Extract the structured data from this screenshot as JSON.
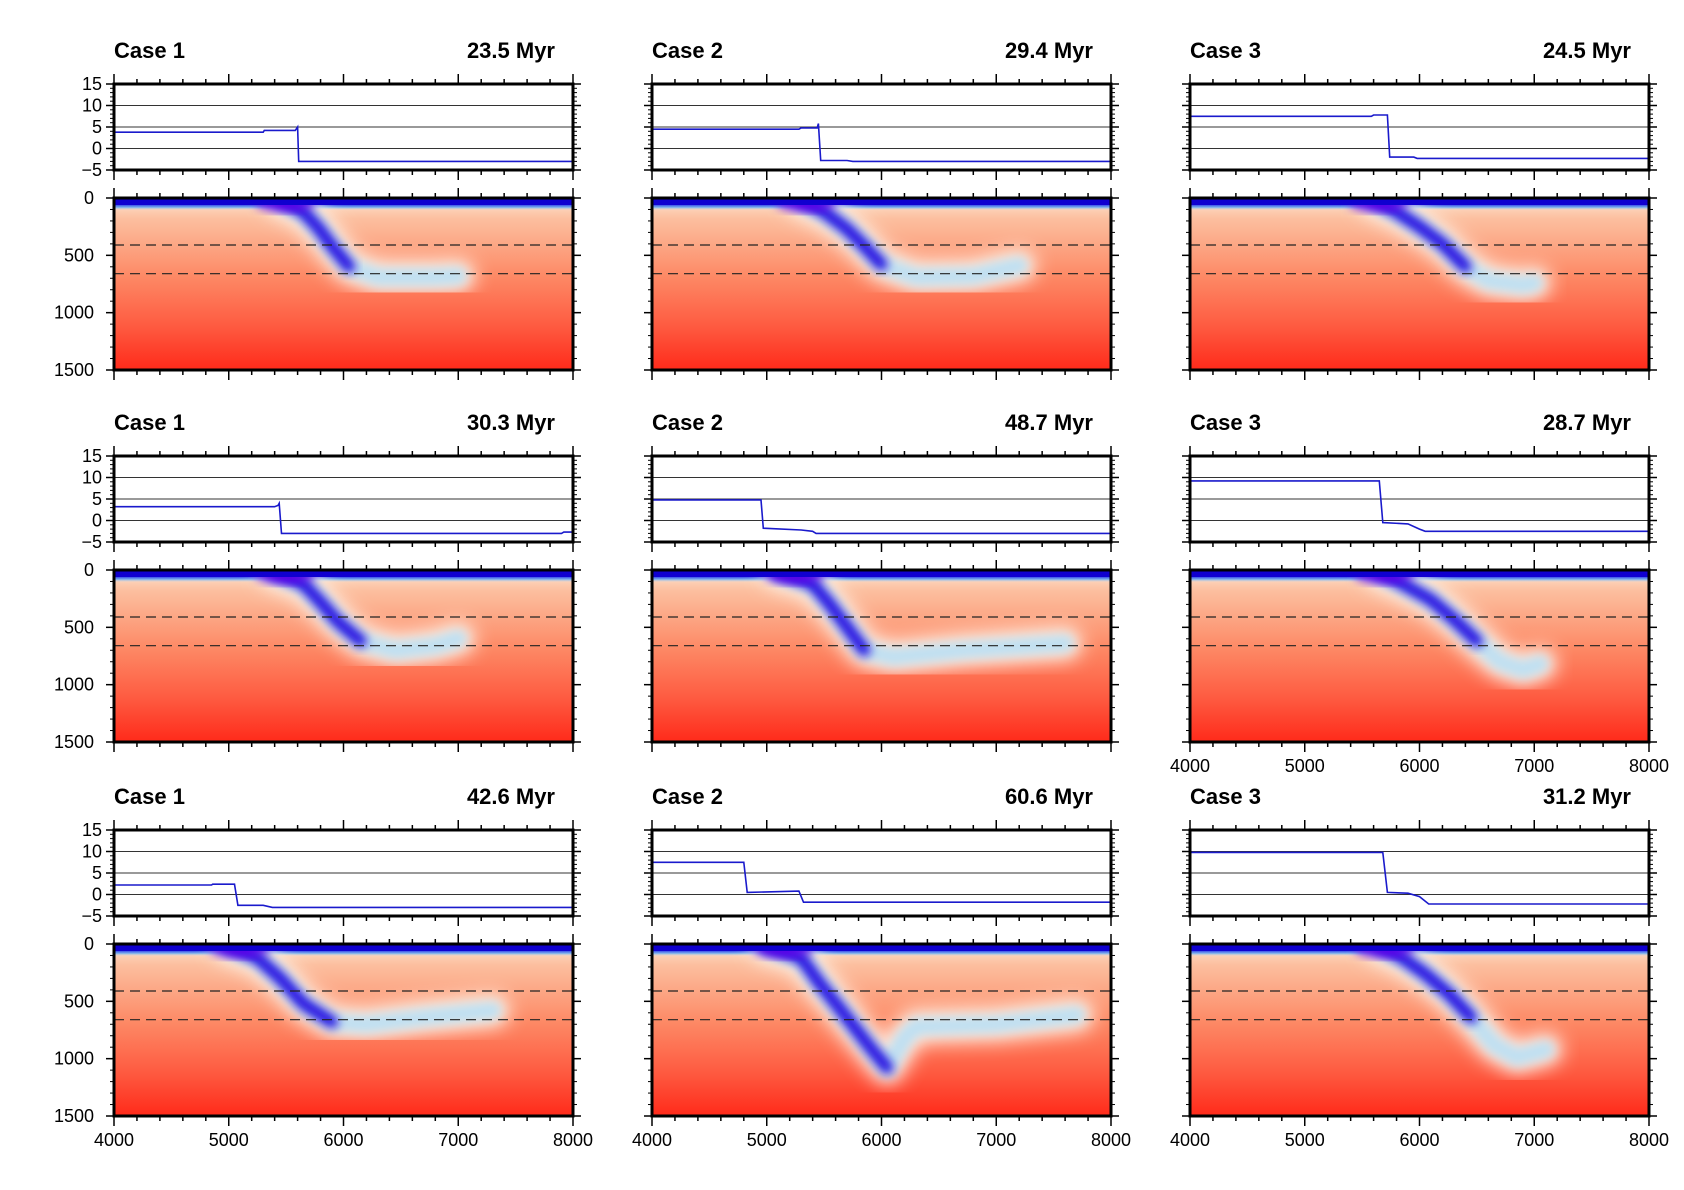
{
  "chart_data": {
    "type": "line",
    "description": "3x3 grid of subduction model snapshots; each panel has a top line plot and a bottom slab field image",
    "colors": {
      "line": "#1a1acc",
      "slab_core": "#1400e0",
      "slab_tip": "#bfe0f2",
      "mantle_top": "#fcbf9f",
      "mantle_bottom": "#ff2a1a",
      "frame": "#000000",
      "gridline": "#333333"
    },
    "top_plot": {
      "ylim": [
        -5,
        15
      ],
      "yticks": [
        15,
        10,
        5,
        0,
        -5
      ],
      "ytick_labels": [
        "15",
        "10",
        "5",
        "0",
        "−5"
      ],
      "gridlines_y": [
        10,
        5,
        0
      ]
    },
    "field_plot": {
      "ylim": [
        0,
        1500
      ],
      "yticks": [
        0,
        500,
        1000,
        1500
      ],
      "ytick_labels": [
        "0",
        "500",
        "1000",
        "1500"
      ],
      "dashed_depths": [
        410,
        660
      ]
    },
    "xlim": [
      4000,
      8000
    ],
    "xticks": [
      4000,
      5000,
      6000,
      7000,
      8000
    ],
    "xtick_labels": [
      "4000",
      "5000",
      "6000",
      "7000",
      "8000"
    ],
    "panels": [
      {
        "case": "Case 1",
        "time": "23.5 Myr",
        "row": 0,
        "col": 0,
        "line": [
          [
            4000,
            3.8
          ],
          [
            5300,
            3.8
          ],
          [
            5310,
            4.2
          ],
          [
            5580,
            4.2
          ],
          [
            5600,
            5.0
          ],
          [
            5610,
            -3.0
          ],
          [
            8000,
            -3.0
          ]
        ],
        "slab": {
          "trench": 5650,
          "path": [
            [
              5450,
              20
            ],
            [
              5650,
              120
            ],
            [
              5780,
              260
            ],
            [
              5900,
              420
            ],
            [
              6050,
              600
            ],
            [
              6300,
              690
            ],
            [
              6800,
              690
            ],
            [
              7000,
              680
            ]
          ],
          "tip_x": 7000,
          "plume": false
        }
      },
      {
        "case": "Case 2",
        "time": "29.4 Myr",
        "row": 0,
        "col": 1,
        "line": [
          [
            4000,
            4.5
          ],
          [
            5280,
            4.5
          ],
          [
            5300,
            4.8
          ],
          [
            5440,
            4.8
          ],
          [
            5450,
            5.8
          ],
          [
            5470,
            -2.8
          ],
          [
            5700,
            -2.8
          ],
          [
            5750,
            -3.0
          ],
          [
            8000,
            -3.0
          ]
        ],
        "slab": {
          "trench": 5500,
          "path": [
            [
              5300,
              20
            ],
            [
              5500,
              120
            ],
            [
              5700,
              270
            ],
            [
              5850,
              420
            ],
            [
              6000,
              580
            ],
            [
              6300,
              690
            ],
            [
              6800,
              680
            ],
            [
              7200,
              590
            ]
          ],
          "tip_x": 7200,
          "plume": false
        }
      },
      {
        "case": "Case 3",
        "time": "24.5 Myr",
        "row": 0,
        "col": 2,
        "line": [
          [
            4000,
            7.5
          ],
          [
            5580,
            7.5
          ],
          [
            5600,
            7.8
          ],
          [
            5720,
            7.8
          ],
          [
            5740,
            -2.0
          ],
          [
            5950,
            -2.0
          ],
          [
            5980,
            -2.3
          ],
          [
            8000,
            -2.3
          ]
        ],
        "slab": {
          "trench": 5800,
          "path": [
            [
              5600,
              20
            ],
            [
              5800,
              120
            ],
            [
              6000,
              250
            ],
            [
              6200,
              400
            ],
            [
              6400,
              600
            ],
            [
              6600,
              720
            ],
            [
              6900,
              760
            ],
            [
              7000,
              740
            ]
          ],
          "tip_x": 7000,
          "plume": false
        }
      },
      {
        "case": "Case 1",
        "time": "30.3 Myr",
        "row": 1,
        "col": 0,
        "line": [
          [
            4000,
            3.2
          ],
          [
            5400,
            3.2
          ],
          [
            5430,
            3.5
          ],
          [
            5440,
            4.0
          ],
          [
            5460,
            -3.0
          ],
          [
            7900,
            -3.0
          ],
          [
            7920,
            -2.7
          ],
          [
            8000,
            -2.7
          ]
        ],
        "slab": {
          "trench": 5650,
          "path": [
            [
              5400,
              20
            ],
            [
              5650,
              120
            ],
            [
              5800,
              280
            ],
            [
              5950,
              450
            ],
            [
              6150,
              620
            ],
            [
              6450,
              700
            ],
            [
              6800,
              660
            ],
            [
              7000,
              600
            ]
          ],
          "tip_x": 7000,
          "plume": false
        }
      },
      {
        "case": "Case 2",
        "time": "48.7 Myr",
        "row": 1,
        "col": 1,
        "line": [
          [
            4000,
            4.8
          ],
          [
            4950,
            4.8
          ],
          [
            4970,
            -1.8
          ],
          [
            5300,
            -2.2
          ],
          [
            5400,
            -2.5
          ],
          [
            5430,
            -3.0
          ],
          [
            8000,
            -3.0
          ]
        ],
        "slab": {
          "trench": 5400,
          "path": [
            [
              5100,
              20
            ],
            [
              5400,
              120
            ],
            [
              5550,
              300
            ],
            [
              5700,
              500
            ],
            [
              5850,
              700
            ],
            [
              6100,
              760
            ],
            [
              6700,
              700
            ],
            [
              7600,
              640
            ]
          ],
          "tip_x": 7600,
          "plume": false
        }
      },
      {
        "case": "Case 3",
        "time": "28.7 Myr",
        "row": 1,
        "col": 2,
        "line": [
          [
            4000,
            9.2
          ],
          [
            5500,
            9.2
          ],
          [
            5650,
            9.2
          ],
          [
            5680,
            -0.5
          ],
          [
            5900,
            -0.8
          ],
          [
            6000,
            -2.0
          ],
          [
            6050,
            -2.5
          ],
          [
            8000,
            -2.5
          ]
        ],
        "slab": {
          "trench": 5850,
          "path": [
            [
              5650,
              20
            ],
            [
              5850,
              120
            ],
            [
              6100,
              260
            ],
            [
              6300,
              430
            ],
            [
              6500,
              620
            ],
            [
              6700,
              800
            ],
            [
              6900,
              870
            ],
            [
              7050,
              820
            ]
          ],
          "tip_x": 7050,
          "plume": false
        }
      },
      {
        "case": "Case 1",
        "time": "42.6 Myr",
        "row": 2,
        "col": 0,
        "line": [
          [
            4000,
            2.2
          ],
          [
            4850,
            2.2
          ],
          [
            4860,
            2.4
          ],
          [
            5050,
            2.4
          ],
          [
            5080,
            -2.5
          ],
          [
            5300,
            -2.5
          ],
          [
            5380,
            -3.0
          ],
          [
            8000,
            -3.0
          ]
        ],
        "slab": {
          "trench": 5250,
          "path": [
            [
              5000,
              20
            ],
            [
              5250,
              120
            ],
            [
              5450,
              300
            ],
            [
              5650,
              520
            ],
            [
              5900,
              680
            ],
            [
              6200,
              700
            ],
            [
              6700,
              640
            ],
            [
              7300,
              580
            ]
          ],
          "tip_x": 7300,
          "plume": false
        }
      },
      {
        "case": "Case 2",
        "time": "60.6 Myr",
        "row": 2,
        "col": 1,
        "line": [
          [
            4000,
            7.5
          ],
          [
            4800,
            7.5
          ],
          [
            4830,
            0.5
          ],
          [
            5280,
            0.8
          ],
          [
            5320,
            -1.8
          ],
          [
            8000,
            -1.8
          ]
        ],
        "slab": {
          "trench": 5300,
          "path": [
            [
              5000,
              20
            ],
            [
              5300,
              120
            ],
            [
              5450,
              330
            ],
            [
              5650,
              580
            ],
            [
              5900,
              900
            ],
            [
              6050,
              1080
            ],
            [
              6200,
              820
            ],
            [
              6300,
              720
            ],
            [
              7000,
              700
            ],
            [
              7700,
              620
            ]
          ],
          "tip_x": 7700,
          "plume": true
        }
      },
      {
        "case": "Case 3",
        "time": "31.2 Myr",
        "row": 2,
        "col": 2,
        "line": [
          [
            4000,
            9.8
          ],
          [
            5450,
            9.8
          ],
          [
            5680,
            9.8
          ],
          [
            5720,
            0.5
          ],
          [
            5900,
            0.3
          ],
          [
            6000,
            -0.5
          ],
          [
            6080,
            -2.2
          ],
          [
            8000,
            -2.2
          ]
        ],
        "slab": {
          "trench": 5850,
          "path": [
            [
              5650,
              20
            ],
            [
              5850,
              120
            ],
            [
              6050,
              260
            ],
            [
              6250,
              430
            ],
            [
              6450,
              640
            ],
            [
              6650,
              880
            ],
            [
              6850,
              990
            ],
            [
              7100,
              920
            ]
          ],
          "tip_x": 7100,
          "plume": false
        }
      }
    ]
  }
}
